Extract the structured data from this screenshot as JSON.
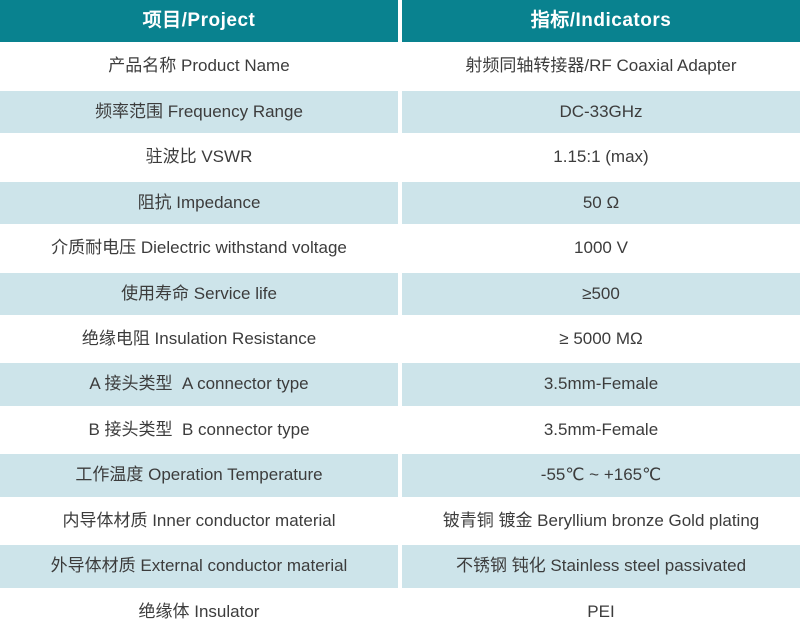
{
  "table_title": "RF Coaxial Adapter specification table",
  "colors": {
    "header_background": "#09828f",
    "header_text": "#ffffff",
    "alt_row_background": "#cde4ea",
    "row_background": "#ffffff",
    "body_text": "#3c3c3c",
    "divider": "#ffffff"
  },
  "header": {
    "project": "项目/Project",
    "indicators": "指标/Indicators"
  },
  "rows": [
    {
      "project": "产品名称 Product Name",
      "indicator": "射频同轴转接器/RF Coaxial Adapter"
    },
    {
      "project": "频率范围 Frequency Range",
      "indicator": "DC-33GHz"
    },
    {
      "project": "驻波比 VSWR",
      "indicator": "1.15:1 (max)"
    },
    {
      "project": "阻抗 Impedance",
      "indicator": "50 Ω"
    },
    {
      "project": "介质耐电压 Dielectric withstand voltage",
      "indicator": "1000 V"
    },
    {
      "project": "使用寿命 Service life",
      "indicator": "≥500"
    },
    {
      "project": "绝缘电阻 Insulation Resistance",
      "indicator": "≥ 5000 MΩ"
    },
    {
      "project": "A 接头类型  A connector type",
      "indicator": "3.5mm-Female"
    },
    {
      "project": "B 接头类型  B connector type",
      "indicator": "3.5mm-Female"
    },
    {
      "project": "工作温度 Operation Temperature",
      "indicator": "-55℃ ~ +165℃"
    },
    {
      "project": "内导体材质 Inner conductor material",
      "indicator": "铍青铜 镀金 Beryllium bronze Gold plating"
    },
    {
      "project": "外导体材质 External conductor material",
      "indicator": "不锈钢 钝化 Stainless steel passivated"
    },
    {
      "project": "绝缘体 Insulator",
      "indicator": "PEI"
    }
  ]
}
